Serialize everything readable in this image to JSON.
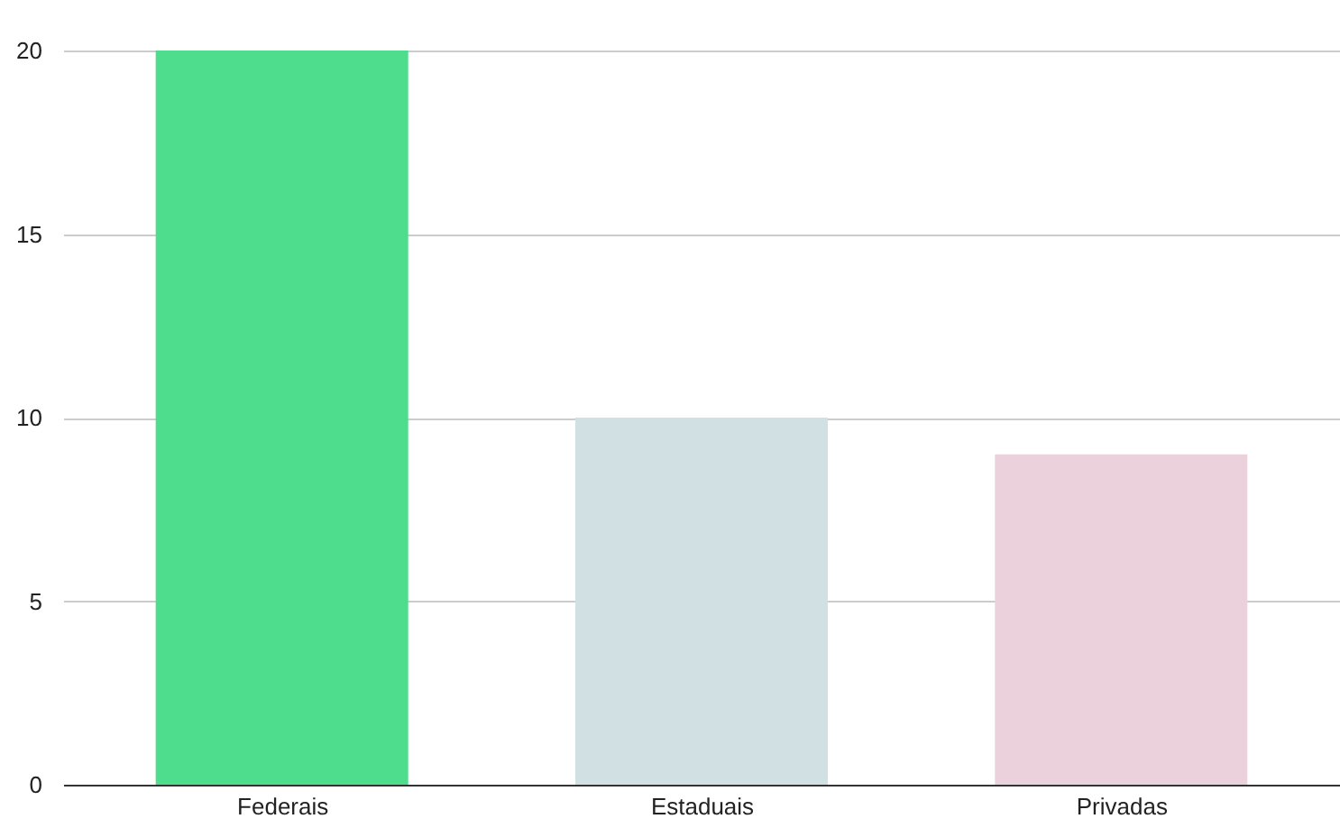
{
  "chart_data": {
    "type": "bar",
    "categories": [
      "Federais",
      "Estaduais",
      "Privadas"
    ],
    "values": [
      20,
      10,
      9
    ],
    "colors": [
      "#4ddd8c",
      "#d0e0e3",
      "#ead1dc"
    ],
    "ylim": [
      0,
      20
    ],
    "yticks": [
      0,
      5,
      10,
      15,
      20
    ],
    "grid": "y"
  }
}
